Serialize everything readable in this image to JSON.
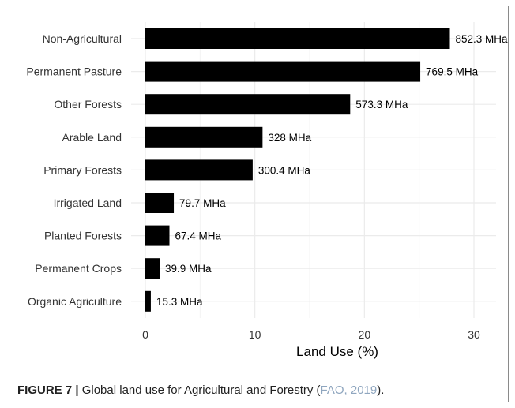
{
  "chart_data": {
    "type": "bar",
    "orientation": "horizontal",
    "categories": [
      "Non-Agricultural",
      "Permanent Pasture",
      "Other Forests",
      "Arable Land",
      "Primary Forests",
      "Irrigated Land",
      "Planted Forests",
      "Permanent Crops",
      "Organic Agriculture"
    ],
    "values": [
      27.8,
      25.1,
      18.7,
      10.7,
      9.8,
      2.6,
      2.2,
      1.3,
      0.5
    ],
    "value_labels": [
      "852.3 MHa",
      "769.5 MHa",
      "573.3 MHa",
      "328 MHa",
      "300.4 MHa",
      "79.7 MHa",
      "67.4 MHa",
      "39.9 MHa",
      "15.3 MHa"
    ],
    "xlabel": "Land Use (%)",
    "xlim": [
      0,
      32
    ],
    "xticks": [
      0,
      10,
      20,
      30
    ],
    "grid": true,
    "bar_color": "#000000",
    "grid_color": "#ebebeb"
  },
  "caption": {
    "figure_label": "FIGURE 7 |",
    "text": " Global land use for Agricultural and Forestry (",
    "citation": "FAO, 2019",
    "end": ")."
  }
}
